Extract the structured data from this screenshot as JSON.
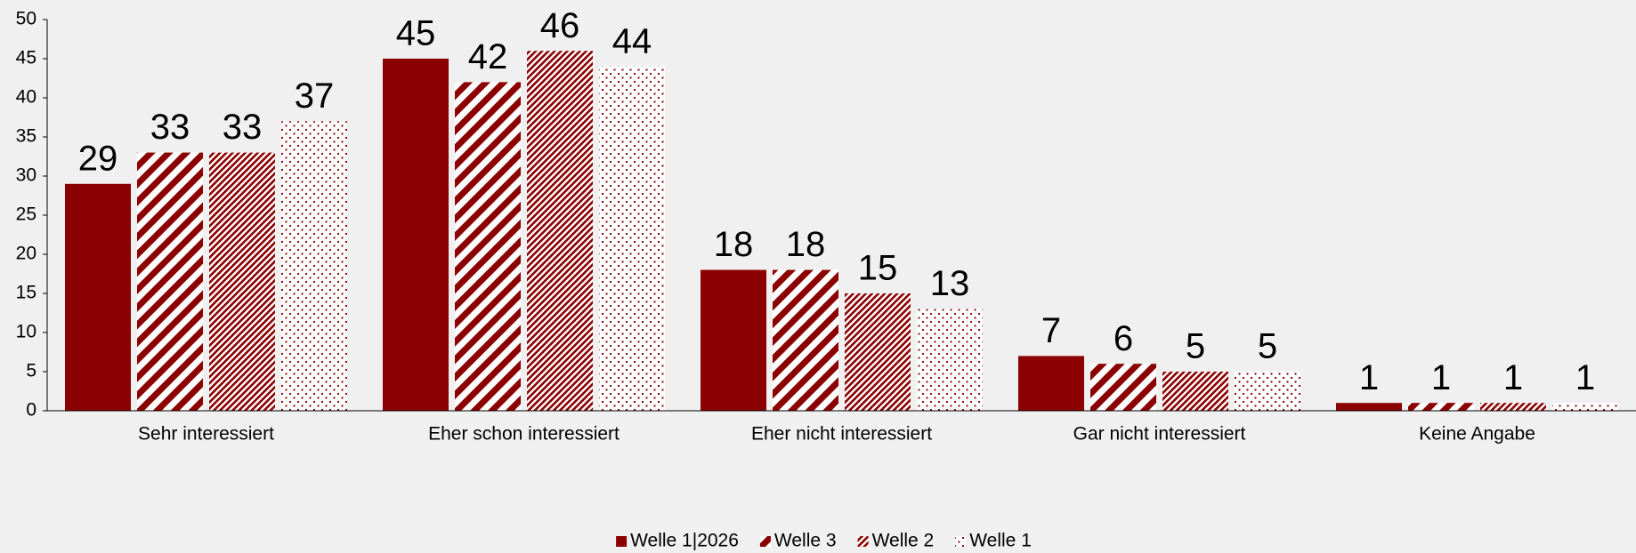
{
  "chart_data": {
    "type": "bar",
    "categories": [
      "Sehr interessiert",
      "Eher schon interessiert",
      "Eher nicht interessiert",
      "Gar nicht interessiert",
      "Keine Angabe"
    ],
    "series": [
      {
        "name": "Welle 1|2026",
        "color": "#8b0000",
        "pattern": "solid",
        "values": [
          29,
          45,
          18,
          7,
          1
        ]
      },
      {
        "name": "Welle 3",
        "color": "#8b0000",
        "pattern": "wide-stripes",
        "values": [
          33,
          42,
          18,
          6,
          1
        ]
      },
      {
        "name": "Welle 2",
        "color": "#8b0000",
        "pattern": "fine-stripes",
        "values": [
          33,
          46,
          15,
          5,
          1
        ]
      },
      {
        "name": "Welle 1",
        "color": "#8b0000",
        "pattern": "dots",
        "values": [
          37,
          44,
          13,
          5,
          1
        ]
      }
    ],
    "ylim": [
      0,
      50
    ],
    "yticks": [
      0,
      5,
      10,
      15,
      20,
      25,
      30,
      35,
      40,
      45,
      50
    ],
    "grid": false,
    "legend": "bottom"
  }
}
